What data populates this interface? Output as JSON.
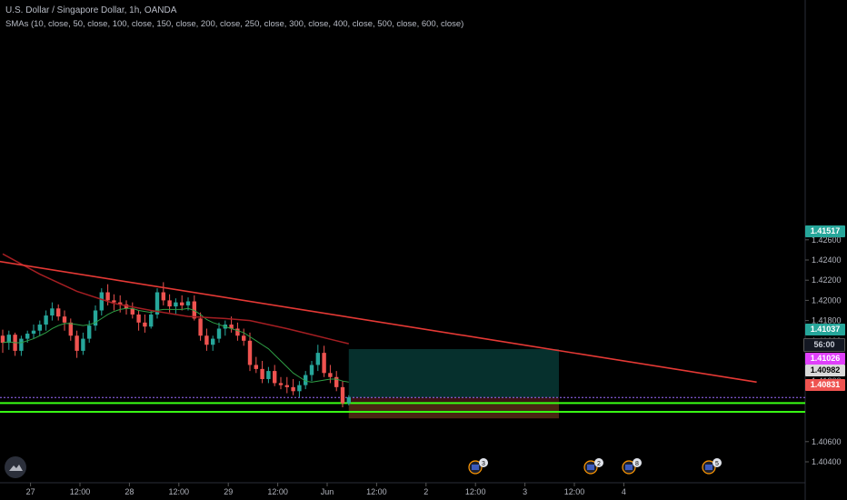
{
  "header": {
    "title": "U.S. Dollar / Singapore Dollar, 1h, OANDA",
    "indicator": "SMAs (10, close, 50, close, 100, close, 150, close, 200, close, 250, close, 300, close, 400, close, 500, close, 600, close)"
  },
  "price_axis": {
    "ticks": [
      "1.42600",
      "1.42400",
      "1.42200",
      "1.42000",
      "1.41800",
      "1.41600",
      "1.41400",
      "1.41200",
      "1.40600",
      "1.40400"
    ],
    "labels": {
      "target": "1.41517",
      "current": "1.41037",
      "countdown": "56:00",
      "magenta": "1.41026",
      "grey": "1.40982",
      "stop": "1.40831"
    }
  },
  "time_axis": {
    "labels": [
      "27",
      "12:00",
      "28",
      "12:00",
      "29",
      "12:00",
      "Jun",
      "12:00",
      "2",
      "12:00",
      "3",
      "12:00",
      "4"
    ]
  },
  "events": [
    {
      "icon": "us-flag-icon",
      "count": "3"
    },
    {
      "icon": "us-flag-icon",
      "count": "2"
    },
    {
      "icon": "us-flag-icon",
      "count": "8"
    },
    {
      "icon": "us-flag-icon",
      "count": "5"
    }
  ],
  "colors": {
    "up": "#26a69a",
    "down": "#ef5350",
    "trendline": "#e53935",
    "sma_fast": "#2e9e44",
    "sma_slow": "#a41e22",
    "level_lines": "#39ff14",
    "target_zone": "#06302d",
    "stop_zone": "#3a1414"
  },
  "chart_data": {
    "type": "candlestick",
    "symbol": "U.S. Dollar / Singapore Dollar",
    "interval": "1h",
    "ylim": [
      1.403,
      1.427
    ],
    "candles": [
      {
        "o": 1.4165,
        "h": 1.4171,
        "l": 1.4148,
        "c": 1.4158
      },
      {
        "o": 1.4158,
        "h": 1.417,
        "l": 1.4151,
        "c": 1.4166
      },
      {
        "o": 1.4166,
        "h": 1.4168,
        "l": 1.4145,
        "c": 1.415
      },
      {
        "o": 1.415,
        "h": 1.4165,
        "l": 1.4145,
        "c": 1.4162
      },
      {
        "o": 1.4162,
        "h": 1.417,
        "l": 1.4158,
        "c": 1.4167
      },
      {
        "o": 1.4167,
        "h": 1.4176,
        "l": 1.4162,
        "c": 1.417
      },
      {
        "o": 1.417,
        "h": 1.418,
        "l": 1.4165,
        "c": 1.4176
      },
      {
        "o": 1.4176,
        "h": 1.419,
        "l": 1.417,
        "c": 1.4185
      },
      {
        "o": 1.4185,
        "h": 1.4198,
        "l": 1.418,
        "c": 1.4192
      },
      {
        "o": 1.4192,
        "h": 1.4196,
        "l": 1.418,
        "c": 1.4184
      },
      {
        "o": 1.4184,
        "h": 1.419,
        "l": 1.417,
        "c": 1.4178
      },
      {
        "o": 1.4178,
        "h": 1.4182,
        "l": 1.416,
        "c": 1.4165
      },
      {
        "o": 1.4165,
        "h": 1.417,
        "l": 1.4143,
        "c": 1.415
      },
      {
        "o": 1.415,
        "h": 1.4168,
        "l": 1.4146,
        "c": 1.4162
      },
      {
        "o": 1.4162,
        "h": 1.418,
        "l": 1.4158,
        "c": 1.4175
      },
      {
        "o": 1.4175,
        "h": 1.4195,
        "l": 1.417,
        "c": 1.419
      },
      {
        "o": 1.419,
        "h": 1.4212,
        "l": 1.4185,
        "c": 1.4208
      },
      {
        "o": 1.4208,
        "h": 1.4216,
        "l": 1.4195,
        "c": 1.42
      },
      {
        "o": 1.42,
        "h": 1.4206,
        "l": 1.419,
        "c": 1.4198
      },
      {
        "o": 1.4198,
        "h": 1.4205,
        "l": 1.4188,
        "c": 1.4196
      },
      {
        "o": 1.4196,
        "h": 1.42,
        "l": 1.4186,
        "c": 1.4192
      },
      {
        "o": 1.4192,
        "h": 1.4198,
        "l": 1.4182,
        "c": 1.4186
      },
      {
        "o": 1.4186,
        "h": 1.419,
        "l": 1.417,
        "c": 1.4178
      },
      {
        "o": 1.4178,
        "h": 1.4186,
        "l": 1.4168,
        "c": 1.4174
      },
      {
        "o": 1.4174,
        "h": 1.419,
        "l": 1.4172,
        "c": 1.4186
      },
      {
        "o": 1.4186,
        "h": 1.4212,
        "l": 1.4182,
        "c": 1.4208
      },
      {
        "o": 1.4208,
        "h": 1.4218,
        "l": 1.4195,
        "c": 1.42
      },
      {
        "o": 1.42,
        "h": 1.4206,
        "l": 1.4188,
        "c": 1.4194
      },
      {
        "o": 1.4194,
        "h": 1.4202,
        "l": 1.4186,
        "c": 1.4198
      },
      {
        "o": 1.4198,
        "h": 1.4205,
        "l": 1.419,
        "c": 1.4195
      },
      {
        "o": 1.4195,
        "h": 1.4203,
        "l": 1.419,
        "c": 1.4199
      },
      {
        "o": 1.4199,
        "h": 1.4205,
        "l": 1.418,
        "c": 1.4182
      },
      {
        "o": 1.4182,
        "h": 1.4188,
        "l": 1.416,
        "c": 1.4165
      },
      {
        "o": 1.4165,
        "h": 1.4172,
        "l": 1.415,
        "c": 1.4156
      },
      {
        "o": 1.4156,
        "h": 1.4165,
        "l": 1.415,
        "c": 1.4162
      },
      {
        "o": 1.4162,
        "h": 1.4178,
        "l": 1.4158,
        "c": 1.4172
      },
      {
        "o": 1.4172,
        "h": 1.418,
        "l": 1.4165,
        "c": 1.4176
      },
      {
        "o": 1.4176,
        "h": 1.4184,
        "l": 1.4168,
        "c": 1.4172
      },
      {
        "o": 1.4172,
        "h": 1.4178,
        "l": 1.416,
        "c": 1.4165
      },
      {
        "o": 1.4165,
        "h": 1.4172,
        "l": 1.4155,
        "c": 1.416
      },
      {
        "o": 1.416,
        "h": 1.4168,
        "l": 1.413,
        "c": 1.4136
      },
      {
        "o": 1.4136,
        "h": 1.4144,
        "l": 1.4128,
        "c": 1.4132
      },
      {
        "o": 1.4132,
        "h": 1.414,
        "l": 1.4118,
        "c": 1.4122
      },
      {
        "o": 1.4122,
        "h": 1.4134,
        "l": 1.4118,
        "c": 1.413
      },
      {
        "o": 1.413,
        "h": 1.4136,
        "l": 1.4115,
        "c": 1.4118
      },
      {
        "o": 1.4118,
        "h": 1.4124,
        "l": 1.4112,
        "c": 1.4116
      },
      {
        "o": 1.4116,
        "h": 1.4124,
        "l": 1.4108,
        "c": 1.4114
      },
      {
        "o": 1.4114,
        "h": 1.4122,
        "l": 1.4106,
        "c": 1.411
      },
      {
        "o": 1.411,
        "h": 1.412,
        "l": 1.4104,
        "c": 1.4116
      },
      {
        "o": 1.4116,
        "h": 1.413,
        "l": 1.4112,
        "c": 1.4126
      },
      {
        "o": 1.4126,
        "h": 1.414,
        "l": 1.412,
        "c": 1.4136
      },
      {
        "o": 1.4136,
        "h": 1.4156,
        "l": 1.413,
        "c": 1.4148
      },
      {
        "o": 1.4148,
        "h": 1.4155,
        "l": 1.4124,
        "c": 1.4128
      },
      {
        "o": 1.4128,
        "h": 1.4136,
        "l": 1.4118,
        "c": 1.4124
      },
      {
        "o": 1.4124,
        "h": 1.413,
        "l": 1.411,
        "c": 1.4114
      },
      {
        "o": 1.4114,
        "h": 1.412,
        "l": 1.4094,
        "c": 1.4098
      },
      {
        "o": 1.4098,
        "h": 1.4106,
        "l": 1.4096,
        "c": 1.4104
      }
    ],
    "sma_fast": [
      1.4158,
      1.4159,
      1.4158,
      1.4158,
      1.416,
      1.4162,
      1.4165,
      1.4168,
      1.4172,
      1.4175,
      1.4177,
      1.4177,
      1.4176,
      1.4175,
      1.4176,
      1.4178,
      1.4182,
      1.4186,
      1.4189,
      1.4191,
      1.4192,
      1.4192,
      1.419,
      1.4189,
      1.4188,
      1.419,
      1.4191,
      1.4191,
      1.4191,
      1.4191,
      1.4192,
      1.419,
      1.4186,
      1.4181,
      1.4178,
      1.4176,
      1.4174,
      1.4172,
      1.417,
      1.4168,
      1.4164,
      1.416,
      1.4156,
      1.4152,
      1.4146,
      1.414,
      1.4134,
      1.4128,
      1.4124,
      1.412,
      1.4119,
      1.412,
      1.4121,
      1.4122,
      1.4122,
      1.412,
      1.4119
    ],
    "sma_slow_points": [
      [
        0,
        1.4246
      ],
      [
        6,
        1.4226
      ],
      [
        12,
        1.4209
      ],
      [
        18,
        1.4197
      ],
      [
        24,
        1.419
      ],
      [
        30,
        1.4184
      ],
      [
        36,
        1.4182
      ],
      [
        40,
        1.418
      ],
      [
        46,
        1.4172
      ],
      [
        50,
        1.4166
      ],
      [
        54,
        1.416
      ],
      [
        56,
        1.4157
      ]
    ],
    "trendline": {
      "from": [
        -1,
        1.4239
      ],
      "to": [
        122,
        1.4119
      ]
    },
    "target_box": {
      "x0": 56,
      "x1": 90,
      "top": 1.41517,
      "bottom": 1.41037
    },
    "stop_box": {
      "x0": 56,
      "x1": 90,
      "top": 1.41037,
      "bottom": 1.40831
    },
    "horizontal_lines": [
      1.41026,
      1.40982,
      1.40831
    ],
    "level_lines": [
      1.40982,
      1.40896
    ],
    "x_ticks": [
      {
        "label": "27",
        "i": 4.5
      },
      {
        "label": "12:00",
        "i": 12.5
      },
      {
        "label": "28",
        "i": 20.5
      },
      {
        "label": "12:00",
        "i": 28.5
      },
      {
        "label": "29",
        "i": 36.5
      },
      {
        "label": "12:00",
        "i": 44.5
      },
      {
        "label": "Jun",
        "i": 52.5
      },
      {
        "label": "12:00",
        "i": 60.5
      },
      {
        "label": "2",
        "i": 68.5
      },
      {
        "label": "12:00",
        "i": 76.5
      },
      {
        "label": "3",
        "i": 84.5
      },
      {
        "label": "12:00",
        "i": 92.5
      },
      {
        "label": "4",
        "i": 100.5
      }
    ],
    "y_ticks": [
      1.426,
      1.424,
      1.422,
      1.42,
      1.418,
      1.416,
      1.414,
      1.412,
      1.406,
      1.404
    ]
  }
}
